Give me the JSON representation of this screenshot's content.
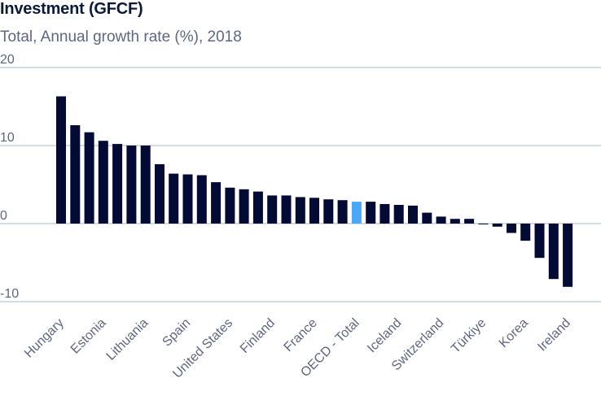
{
  "chart_data": {
    "type": "bar",
    "title": "Investment (GFCF)",
    "subtitle": "Total, Annual growth rate (%), 2018",
    "xlabel": "",
    "ylabel": "",
    "ylim": [
      -10,
      20
    ],
    "yticks": [
      20,
      10,
      0,
      -10
    ],
    "grid": true,
    "highlight_category_index": 21,
    "colors": {
      "bar": "#030a33",
      "highlight": "#4aa8f7",
      "grid": "#d5dbe3",
      "text": "#5d6780",
      "title": "#0b1a3b"
    },
    "labeled_categories": [
      {
        "index": 0,
        "label": "Hungary"
      },
      {
        "index": 3,
        "label": "Estonia"
      },
      {
        "index": 6,
        "label": "Lithuania"
      },
      {
        "index": 9,
        "label": "Spain"
      },
      {
        "index": 12,
        "label": "United States"
      },
      {
        "index": 15,
        "label": "Finland"
      },
      {
        "index": 18,
        "label": "France"
      },
      {
        "index": 21,
        "label": "OECD - Total"
      },
      {
        "index": 24,
        "label": "Iceland"
      },
      {
        "index": 27,
        "label": "Switzerland"
      },
      {
        "index": 30,
        "label": "Türkiye"
      },
      {
        "index": 33,
        "label": "Korea"
      },
      {
        "index": 36,
        "label": "Ireland"
      }
    ],
    "values": [
      16.3,
      12.6,
      11.7,
      10.6,
      10.2,
      10.0,
      10.0,
      7.6,
      6.4,
      6.3,
      6.2,
      5.3,
      4.6,
      4.4,
      4.1,
      3.6,
      3.6,
      3.4,
      3.3,
      3.1,
      3.0,
      2.8,
      2.8,
      2.5,
      2.4,
      2.3,
      1.4,
      0.9,
      0.6,
      0.6,
      -0.1,
      -0.4,
      -1.2,
      -2.2,
      -4.4,
      -7.1,
      -8.1
    ]
  }
}
